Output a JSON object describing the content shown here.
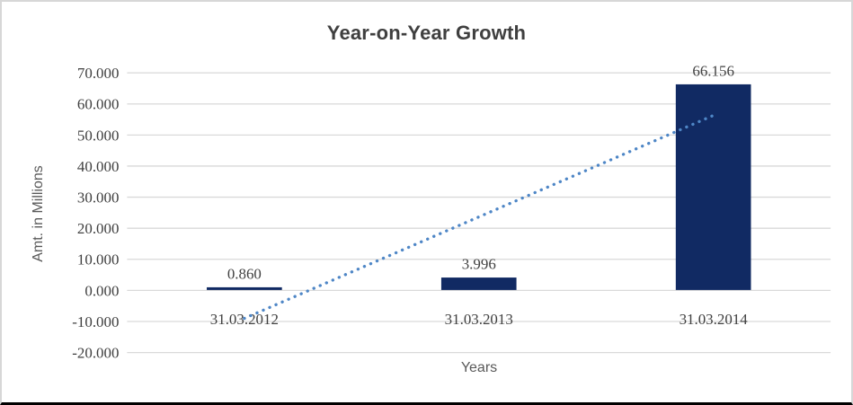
{
  "chart_data": {
    "type": "bar",
    "title": "Year-on-Year Growth",
    "xlabel": "Years",
    "ylabel": "Amt. in Millions",
    "categories": [
      "31.03.2012",
      "31.03.2013",
      "31.03.2014"
    ],
    "values": [
      0.86,
      3.996,
      66.156
    ],
    "data_labels": [
      "0.860",
      "3.996",
      "66.156"
    ],
    "y_ticks": [
      {
        "label": "70.000",
        "value": 70
      },
      {
        "label": "60.000",
        "value": 60
      },
      {
        "label": "50.000",
        "value": 50
      },
      {
        "label": "40.000",
        "value": 40
      },
      {
        "label": "30.000",
        "value": 30
      },
      {
        "label": "20.000",
        "value": 20
      },
      {
        "label": "10.000",
        "value": 10
      },
      {
        "label": "0.000",
        "value": 0
      },
      {
        "label": "-10.000",
        "value": -10
      },
      {
        "label": "-20.000",
        "value": -20
      }
    ],
    "ylim": [
      -20,
      70
    ],
    "grid": true,
    "legend": "none",
    "trendline": {
      "type": "linear",
      "style": "dotted",
      "start_value": -9.0,
      "end_value": 56.3
    },
    "colors": {
      "bar": "#112a63",
      "trendline": "#4e86c6",
      "gridline": "#d9d9d9",
      "title_text": "#3f3f3f",
      "axis_title_text": "#595959",
      "tick_text": "#404040"
    }
  }
}
